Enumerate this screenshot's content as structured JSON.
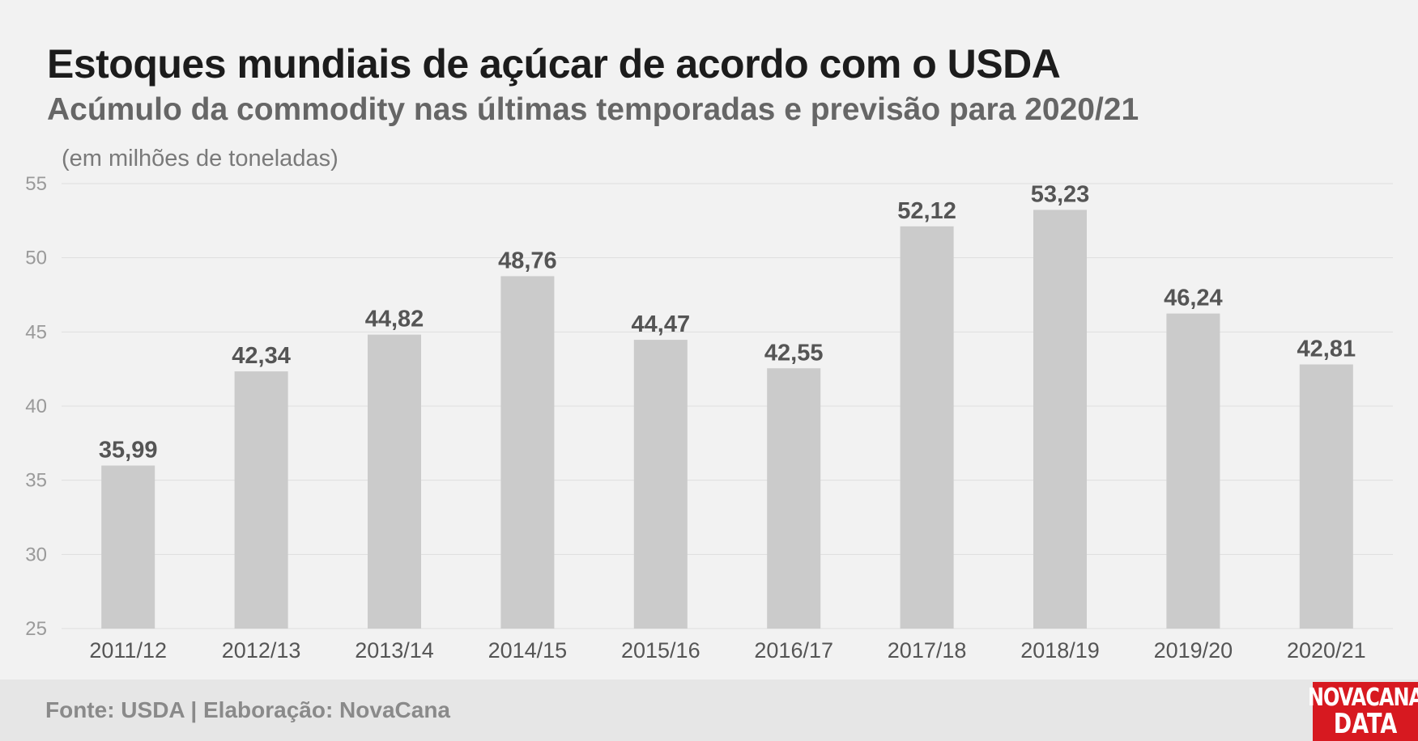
{
  "header": {
    "title": "Estoques mundiais de açúcar de acordo com o USDA",
    "subtitle": "Acúmulo da commodity nas últimas temporadas e previsão para 2020/21",
    "unit_note": "(em milhões de toneladas)"
  },
  "footer": {
    "source": "Fonte: USDA | Elaboração: NovaCana",
    "logo_line1": "NOVACANA",
    "logo_line2": "DATA"
  },
  "colors": {
    "bar": "#cbcbcb",
    "grid": "#dedede",
    "value_label": "#555555",
    "tick": "#9a9a9a",
    "category": "#555555",
    "logo_bg": "#d71920"
  },
  "chart_data": {
    "type": "bar",
    "title": "Estoques mundiais de açúcar de acordo com o USDA",
    "subtitle": "Acúmulo da commodity nas últimas temporadas e previsão para 2020/21",
    "ylabel": "(em milhões de toneladas)",
    "xlabel": "",
    "categories": [
      "2011/12",
      "2012/13",
      "2013/14",
      "2014/15",
      "2015/16",
      "2016/17",
      "2017/18",
      "2018/19",
      "2019/20",
      "2020/21"
    ],
    "values": [
      35.99,
      42.34,
      44.82,
      48.76,
      44.47,
      42.55,
      52.12,
      53.23,
      46.24,
      42.81
    ],
    "value_labels": [
      "35,99",
      "42,34",
      "44,82",
      "48,76",
      "44,47",
      "42,55",
      "52,12",
      "53,23",
      "46,24",
      "42,81"
    ],
    "ylim": [
      25,
      55
    ],
    "yticks": [
      25,
      30,
      35,
      40,
      45,
      50,
      55
    ],
    "grid": true,
    "legend": "none"
  }
}
